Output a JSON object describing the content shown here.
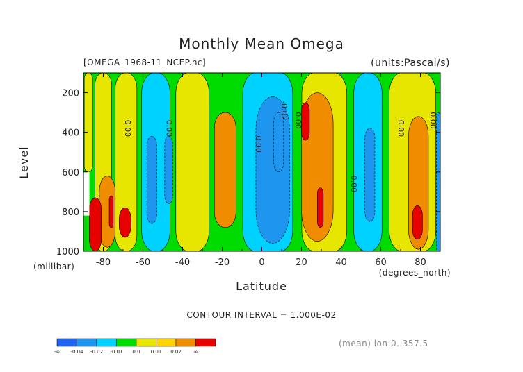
{
  "header": {
    "title": "Monthly Mean Omega",
    "file_label": "[OMEGA_1968-11_NCEP.nc]",
    "units_label": "(units:Pascal/s)"
  },
  "axes": {
    "ylabel": "Level",
    "yunit": "(millibar)",
    "xlabel": "Latitude",
    "xunit": "(degrees_north)"
  },
  "footer": {
    "contour_interval": "CONTOUR INTERVAL = 1.000E-02",
    "mean_note": "(mean) lon:0..357.5"
  },
  "chart_data": {
    "type": "heatmap",
    "title": "Monthly Mean Omega",
    "xlabel": "Latitude",
    "ylabel": "Level",
    "x_unit": "degrees_north",
    "y_unit": "millibar",
    "units": "Pascal/s",
    "xlim": [
      -90,
      90
    ],
    "ylim": [
      1000,
      100
    ],
    "x_ticks": [
      -80,
      -60,
      -40,
      -20,
      0,
      20,
      40,
      60,
      80
    ],
    "y_ticks": [
      200,
      400,
      600,
      800,
      1000
    ],
    "x_tick_labels": [
      "-80",
      "-60",
      "-40",
      "-20",
      "0",
      "20",
      "40",
      "60",
      "80"
    ],
    "y_tick_labels": [
      "200",
      "400",
      "600",
      "800",
      "1000"
    ],
    "contour_interval": 0.01,
    "contour_labels": [
      {
        "text": "0.00",
        "lat": -69,
        "level": 380
      },
      {
        "text": "0.00",
        "lat": -48,
        "level": 380
      },
      {
        "text": "0.00",
        "lat": -3,
        "level": 460
      },
      {
        "text": "-0.02",
        "lat": 10,
        "level": 290
      },
      {
        "text": "0.00",
        "lat": 17,
        "level": 340
      },
      {
        "text": "0.00",
        "lat": 45,
        "level": 660
      },
      {
        "text": "0.00",
        "lat": 69,
        "level": 380
      },
      {
        "text": "0.00",
        "lat": 85,
        "level": 340
      }
    ],
    "colorbar": {
      "colors": [
        "#1e64f0",
        "#1e96f0",
        "#00d2ff",
        "#00dc00",
        "#e6e600",
        "#ffd200",
        "#f08c00",
        "#e60000"
      ],
      "labels": [
        "-∞",
        "-0.04",
        "-0.02",
        "-0.01",
        "0.0",
        "0.01",
        "0.02",
        "∞"
      ]
    },
    "zones": [
      {
        "lat0": -90,
        "lat1": -85,
        "level0": 100,
        "level1": 600,
        "value": 0.0
      },
      {
        "lat0": -85,
        "lat1": -75,
        "level0": 100,
        "level1": 1000,
        "value": 0.005
      },
      {
        "lat0": -75,
        "lat1": -62,
        "level0": 100,
        "level1": 1000,
        "value": 0.0
      },
      {
        "lat0": -62,
        "lat1": -45,
        "level0": 100,
        "level1": 1000,
        "value": -0.005
      },
      {
        "lat0": -45,
        "lat1": -25,
        "level0": 100,
        "level1": 1000,
        "value": 0.005
      },
      {
        "lat0": -25,
        "lat1": -12,
        "level0": 300,
        "level1": 880,
        "value": 0.015
      },
      {
        "lat0": -12,
        "lat1": 18,
        "level0": 100,
        "level1": 1000,
        "value": -0.005
      },
      {
        "lat0": 18,
        "lat1": 45,
        "level0": 100,
        "level1": 1000,
        "value": 0.005
      },
      {
        "lat0": 45,
        "lat1": 62,
        "level0": 100,
        "level1": 1000,
        "value": -0.005
      },
      {
        "lat0": 62,
        "lat1": 90,
        "level0": 100,
        "level1": 1000,
        "value": 0.005
      }
    ]
  },
  "colors": {
    "background": "#ffffff",
    "axis": "#000000",
    "text": "#222222"
  }
}
